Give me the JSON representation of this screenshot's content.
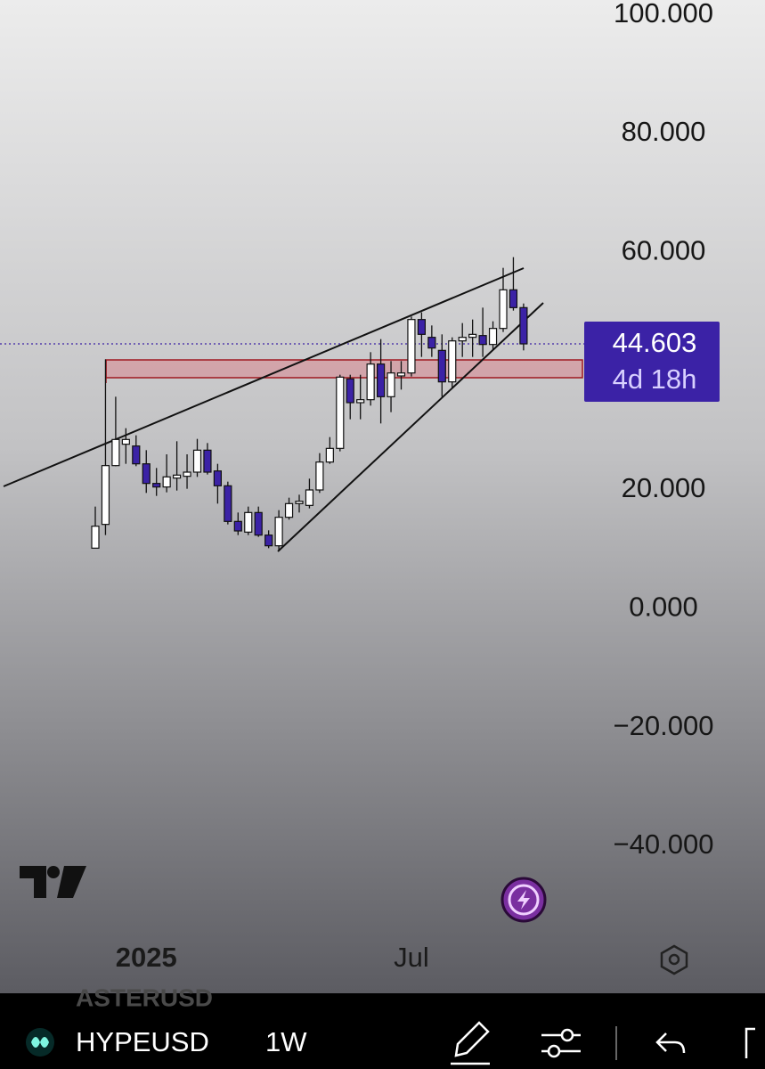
{
  "chart_data": {
    "type": "candlestick",
    "categories": [
      null,
      null,
      null,
      null,
      null,
      "2025",
      null,
      null,
      null,
      null,
      null,
      null,
      null,
      null,
      null,
      null,
      null,
      null,
      null,
      null,
      null,
      null,
      null,
      null,
      null,
      null,
      null,
      null,
      null,
      null,
      null,
      "Jul",
      null,
      null,
      null,
      null,
      null,
      null,
      null,
      null,
      null,
      null,
      null
    ],
    "open": [
      10.2,
      14.2,
      24.1,
      27.7,
      27.4,
      24.4,
      21.1,
      20.5,
      22.0,
      22.3,
      23.0,
      26.7,
      23.2,
      20.7,
      14.7,
      12.9,
      16.2,
      12.4,
      10.6,
      15.4,
      17.7,
      17.4,
      20.0,
      24.7,
      27.0,
      38.7,
      34.7,
      35.2,
      41.2,
      35.7,
      39.2,
      39.7,
      48.7,
      45.7,
      43.5,
      38.2,
      45.1,
      45.7,
      46.0,
      44.5,
      47.2,
      53.7,
      50.7
    ],
    "high": [
      17.2,
      42.0,
      35.7,
      30.4,
      29.2,
      26.7,
      23.7,
      26.0,
      28.2,
      26.0,
      28.6,
      27.9,
      24.4,
      21.4,
      16.2,
      17.2,
      17.2,
      13.2,
      16.6,
      18.7,
      19.2,
      21.9,
      26.2,
      28.9,
      39.4,
      39.4,
      39.4,
      43.2,
      45.4,
      41.7,
      41.7,
      49.2,
      49.9,
      47.7,
      46.2,
      45.7,
      48.1,
      48.7,
      50.7,
      48.4,
      57.4,
      59.2,
      51.4
    ],
    "low": [
      10.2,
      12.4,
      24.0,
      24.4,
      24.0,
      19.5,
      19.0,
      19.6,
      19.9,
      20.2,
      22.2,
      22.6,
      17.7,
      14.2,
      12.4,
      12.4,
      12.1,
      10.2,
      9.7,
      15.0,
      16.2,
      16.9,
      19.5,
      24.4,
      26.5,
      31.9,
      31.9,
      34.2,
      31.2,
      33.1,
      36.9,
      39.1,
      42.4,
      42.4,
      35.7,
      37.2,
      42.4,
      42.4,
      42.4,
      43.6,
      46.6,
      50.2,
      43.5
    ],
    "close": [
      13.9,
      24.1,
      28.5,
      28.5,
      24.4,
      21.1,
      20.5,
      22.2,
      22.5,
      23.0,
      26.7,
      23.0,
      20.7,
      14.7,
      13.1,
      16.2,
      12.4,
      10.6,
      15.4,
      17.7,
      18.1,
      20.0,
      24.7,
      27.0,
      39.0,
      34.7,
      35.2,
      41.2,
      35.7,
      39.7,
      39.7,
      48.7,
      46.2,
      43.9,
      38.2,
      45.1,
      45.7,
      46.2,
      44.5,
      47.2,
      53.7,
      50.7,
      44.603
    ],
    "up_color": "#ffffff",
    "down_color": "#3b22a6",
    "ylim": [
      -53.5,
      102.5
    ],
    "yticks": [
      {
        "value": 100,
        "label": "100.000"
      },
      {
        "value": 80,
        "label": "80.000"
      },
      {
        "value": 60,
        "label": "60.000"
      },
      {
        "value": 20,
        "label": "20.000"
      },
      {
        "value": 0,
        "label": "0.000"
      },
      {
        "value": -20,
        "label": "−20.000"
      },
      {
        "value": -40,
        "label": "−40.000"
      }
    ],
    "price_label": "44.603",
    "countdown": "4d 18h",
    "symbol": "HYPEUSD",
    "interval": "1W",
    "background_symbol": "ASTERUSD"
  }
}
